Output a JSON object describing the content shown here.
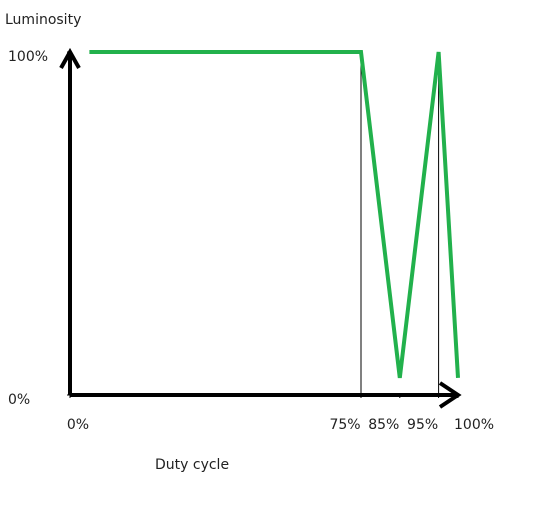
{
  "chart_data": {
    "type": "line",
    "y_label": "Luminosity",
    "x_label": "Duty cycle",
    "x": [
      5,
      75,
      85,
      95,
      100
    ],
    "series": [
      {
        "color": "#22b14c",
        "values": [
          100,
          100,
          5,
          100,
          5
        ]
      }
    ],
    "xlim": [
      0,
      100
    ],
    "ylim": [
      0,
      100
    ],
    "xticks": [
      {
        "value": 0,
        "label": "0%"
      },
      {
        "value": 75,
        "label": "75%"
      },
      {
        "value": 85,
        "label": "85%"
      },
      {
        "value": 95,
        "label": "95%"
      },
      {
        "value": 100,
        "label": "100%"
      }
    ],
    "yticks": [
      {
        "value": 0,
        "label": "0%"
      },
      {
        "value": 100,
        "label": "100%"
      }
    ],
    "drop_lines": [
      75,
      95
    ],
    "axis_color": "#000000"
  }
}
